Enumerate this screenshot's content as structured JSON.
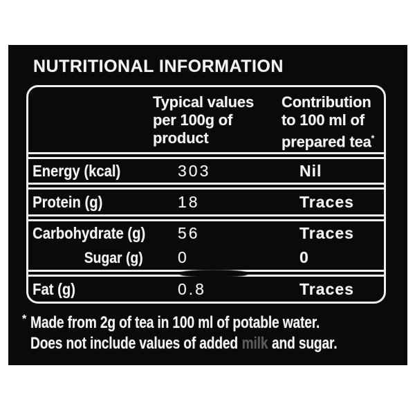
{
  "colors": {
    "page_background": "#ffffff",
    "panel_background": "#0a0a0a",
    "text": "#f4f4f2"
  },
  "title": "NUTRITIONAL INFORMATION",
  "table": {
    "header": {
      "col1": "",
      "col2_lines": [
        "Typical values",
        "per 100g of",
        "product"
      ],
      "col3_lines": [
        "Contribution",
        "to 100 ml of"
      ],
      "col3_last_line": "prepared tea",
      "col3_superscript": "*"
    },
    "sections": [
      {
        "rows": [
          {
            "label": "Energy (kcal)",
            "typical": "303",
            "contribution": "Nil"
          }
        ]
      },
      {
        "rows": [
          {
            "label": "Protein (g)",
            "typical": "18",
            "contribution": "Traces"
          }
        ]
      },
      {
        "rows": [
          {
            "label": "Carbohydrate (g)",
            "typical": "56",
            "contribution": "Traces"
          },
          {
            "label": "Sugar (g)",
            "typical": "0",
            "contribution": "0"
          }
        ]
      },
      {
        "rows": [
          {
            "label": "Fat (g)",
            "typical": "0.8",
            "contribution": "Traces"
          }
        ]
      }
    ]
  },
  "footnote": {
    "marker": "*",
    "line1": "Made from 2g of tea in 100 ml of potable water.",
    "line2_part1": "Does not include values of added",
    "line2_faded": "milk",
    "line2_part2": "and sugar."
  }
}
